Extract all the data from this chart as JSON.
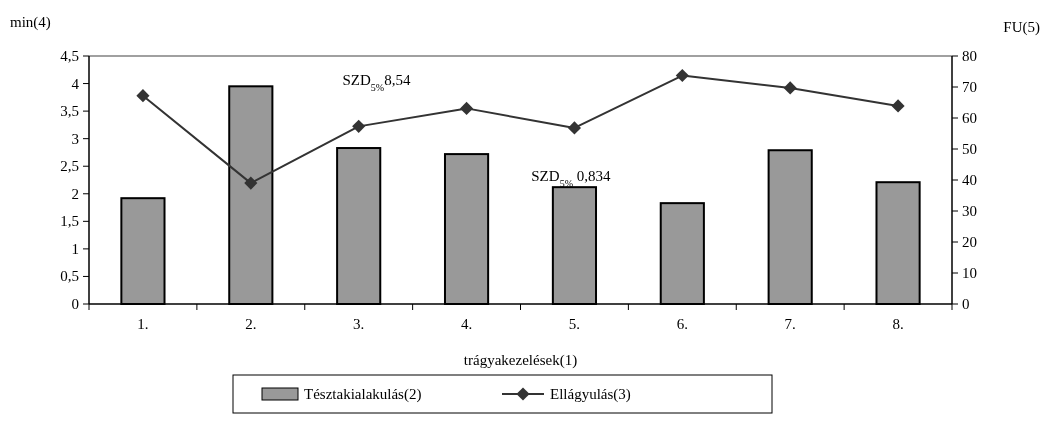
{
  "chart_data": {
    "type": "bar",
    "xlabel": "trágyakezelések(1)",
    "ylabel": "min(4)",
    "y2label": "FU(5)",
    "categories": [
      "1.",
      "2.",
      "3.",
      "4.",
      "5.",
      "6.",
      "7.",
      "8."
    ],
    "series": [
      {
        "name": "Tésztakialakulás(2)",
        "color": "#999999",
        "values": [
          1.92,
          3.95,
          2.83,
          2.72,
          2.12,
          1.83,
          2.79,
          2.21
        ]
      },
      {
        "name": "Ellágyulás(3)",
        "type": "line",
        "axis": "y2",
        "color": "#333333",
        "marker": "diamond",
        "values": [
          67.2,
          39.0,
          57.3,
          63.1,
          56.8,
          73.7,
          69.7,
          63.9
        ]
      }
    ],
    "ylim": [
      0,
      4.5
    ],
    "yticks": [
      {
        "value": 0,
        "label": "0"
      },
      {
        "value": 0.5,
        "label": "0,5"
      },
      {
        "value": 1,
        "label": "1"
      },
      {
        "value": 1.5,
        "label": "1,5"
      },
      {
        "value": 2,
        "label": "2"
      },
      {
        "value": 2.5,
        "label": "2,5"
      },
      {
        "value": 3,
        "label": "3"
      },
      {
        "value": 3.5,
        "label": "3,5"
      },
      {
        "value": 4,
        "label": "4"
      },
      {
        "value": 4.5,
        "label": "4,5"
      }
    ],
    "y2lim": [
      0,
      80
    ],
    "y2ticks": [
      0,
      10,
      20,
      30,
      40,
      50,
      60,
      70,
      80
    ],
    "annotations": [
      "SZD$_{5%}$8,54",
      "SZD$_{5%}$ 0,834"
    ],
    "legend": "bottom",
    "grid": false
  }
}
